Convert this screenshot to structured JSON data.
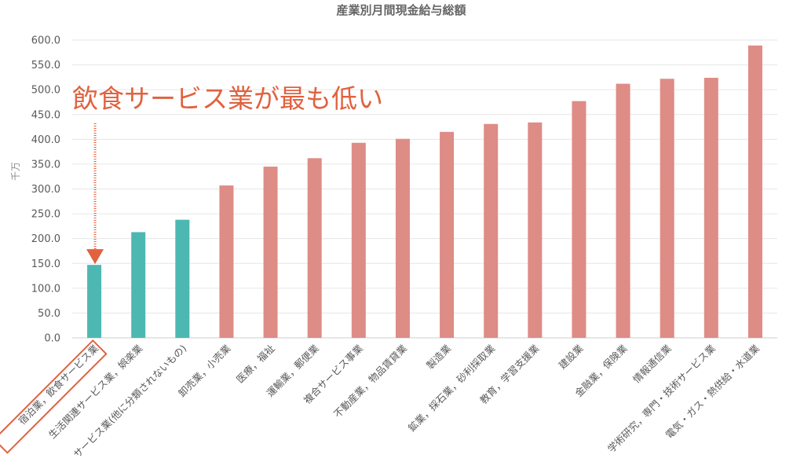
{
  "chart_data": {
    "type": "bar",
    "title": "産業別月間現金給与総額",
    "ylabel": "千万",
    "xlabel": "",
    "ylim": [
      0,
      600
    ],
    "ytick_labels": [
      "0.0",
      "50.0",
      "100.0",
      "150.0",
      "200.0",
      "250.0",
      "300.0",
      "350.0",
      "400.0",
      "450.0",
      "500.0",
      "550.0",
      "600.0"
    ],
    "grid": true,
    "categories": [
      "宿泊業，飲食サービス業",
      "生活関連サービス業，娯楽業",
      "サービス業(他に分類されないもの)",
      "卸売業，小売業",
      "医療，福祉",
      "運輸業，郵便業",
      "複合サービス事業",
      "不動産業，物品賃貸業",
      "製造業",
      "鉱業，採石業，砂利採取業",
      "教育，学習支援業",
      "建設業",
      "金融業，保険業",
      "情報通信業",
      "学術研究，専門・技術サービス業",
      "電気・ガス・熱供給・水道業"
    ],
    "values": [
      147,
      213,
      238,
      307,
      345,
      362,
      393,
      401,
      415,
      431,
      434,
      477,
      512,
      522,
      524,
      589
    ],
    "bar_colors": [
      "#4db8b2",
      "#4db8b2",
      "#4db8b2",
      "#de8c86",
      "#de8c86",
      "#de8c86",
      "#de8c86",
      "#de8c86",
      "#de8c86",
      "#de8c86",
      "#de8c86",
      "#de8c86",
      "#de8c86",
      "#de8c86",
      "#de8c86",
      "#de8c86"
    ],
    "annotation": {
      "text": "飲食サービス業が最も低い",
      "color": "#e0623f",
      "highlighted_category_index": 0
    }
  }
}
